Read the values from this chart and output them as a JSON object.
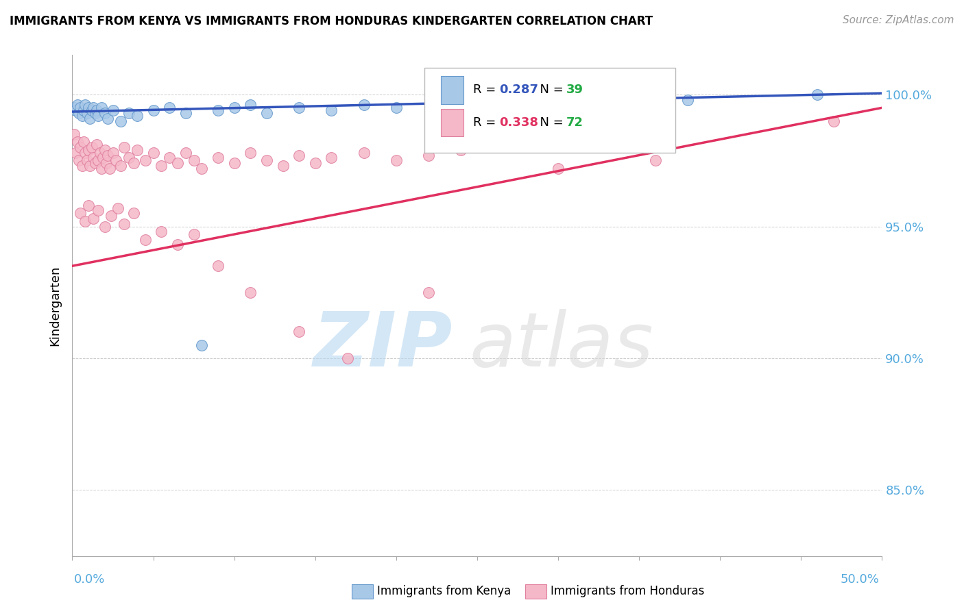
{
  "title": "IMMIGRANTS FROM KENYA VS IMMIGRANTS FROM HONDURAS KINDERGARTEN CORRELATION CHART",
  "source": "Source: ZipAtlas.com",
  "ylabel": "Kindergarten",
  "xlim": [
    0.0,
    50.0
  ],
  "ylim": [
    82.5,
    101.5
  ],
  "kenya_color": "#a8c8e8",
  "kenya_edge": "#6699cc",
  "honduras_color": "#f5b8c8",
  "honduras_edge": "#e080a0",
  "kenya_line_color": "#3355bb",
  "honduras_line_color": "#e03060",
  "kenya_R": 0.287,
  "kenya_N": 39,
  "honduras_R": 0.338,
  "honduras_N": 72,
  "N_color": "#22aa44",
  "right_axis_color": "#55aadd",
  "kenya_scatter_x": [
    0.1,
    0.2,
    0.3,
    0.4,
    0.5,
    0.6,
    0.7,
    0.8,
    0.9,
    1.0,
    1.1,
    1.2,
    1.3,
    1.4,
    1.5,
    1.6,
    1.8,
    2.0,
    2.2,
    2.5,
    3.0,
    3.5,
    4.0,
    5.0,
    6.0,
    7.0,
    8.0,
    9.0,
    10.0,
    11.0,
    12.0,
    14.0,
    16.0,
    18.0,
    20.0,
    24.0,
    30.0,
    38.0,
    46.0
  ],
  "kenya_scatter_y": [
    99.5,
    99.4,
    99.6,
    99.3,
    99.5,
    99.2,
    99.4,
    99.6,
    99.3,
    99.5,
    99.1,
    99.4,
    99.5,
    99.3,
    99.4,
    99.2,
    99.5,
    99.3,
    99.1,
    99.4,
    99.0,
    99.3,
    99.2,
    99.4,
    99.5,
    99.3,
    90.5,
    99.4,
    99.5,
    99.6,
    99.3,
    99.5,
    99.4,
    99.6,
    99.5,
    99.7,
    99.6,
    99.8,
    100.0
  ],
  "honduras_scatter_x": [
    0.1,
    0.2,
    0.3,
    0.4,
    0.5,
    0.6,
    0.7,
    0.8,
    0.9,
    1.0,
    1.1,
    1.2,
    1.3,
    1.4,
    1.5,
    1.6,
    1.7,
    1.8,
    1.9,
    2.0,
    2.1,
    2.2,
    2.3,
    2.5,
    2.7,
    3.0,
    3.2,
    3.5,
    3.8,
    4.0,
    4.5,
    5.0,
    5.5,
    6.0,
    6.5,
    7.0,
    7.5,
    8.0,
    9.0,
    10.0,
    11.0,
    12.0,
    13.0,
    14.0,
    15.0,
    16.0,
    18.0,
    20.0,
    22.0,
    24.0,
    0.5,
    0.8,
    1.0,
    1.3,
    1.6,
    2.0,
    2.4,
    2.8,
    3.2,
    3.8,
    4.5,
    5.5,
    6.5,
    7.5,
    9.0,
    11.0,
    14.0,
    17.0,
    22.0,
    30.0,
    36.0,
    47.0
  ],
  "honduras_scatter_y": [
    98.5,
    97.8,
    98.2,
    97.5,
    98.0,
    97.3,
    98.2,
    97.8,
    97.5,
    97.9,
    97.3,
    98.0,
    97.6,
    97.4,
    98.1,
    97.5,
    97.8,
    97.2,
    97.6,
    97.9,
    97.4,
    97.7,
    97.2,
    97.8,
    97.5,
    97.3,
    98.0,
    97.6,
    97.4,
    97.9,
    97.5,
    97.8,
    97.3,
    97.6,
    97.4,
    97.8,
    97.5,
    97.2,
    97.6,
    97.4,
    97.8,
    97.5,
    97.3,
    97.7,
    97.4,
    97.6,
    97.8,
    97.5,
    97.7,
    97.9,
    95.5,
    95.2,
    95.8,
    95.3,
    95.6,
    95.0,
    95.4,
    95.7,
    95.1,
    95.5,
    94.5,
    94.8,
    94.3,
    94.7,
    93.5,
    92.5,
    91.0,
    90.0,
    92.5,
    97.2,
    97.5,
    99.0
  ]
}
